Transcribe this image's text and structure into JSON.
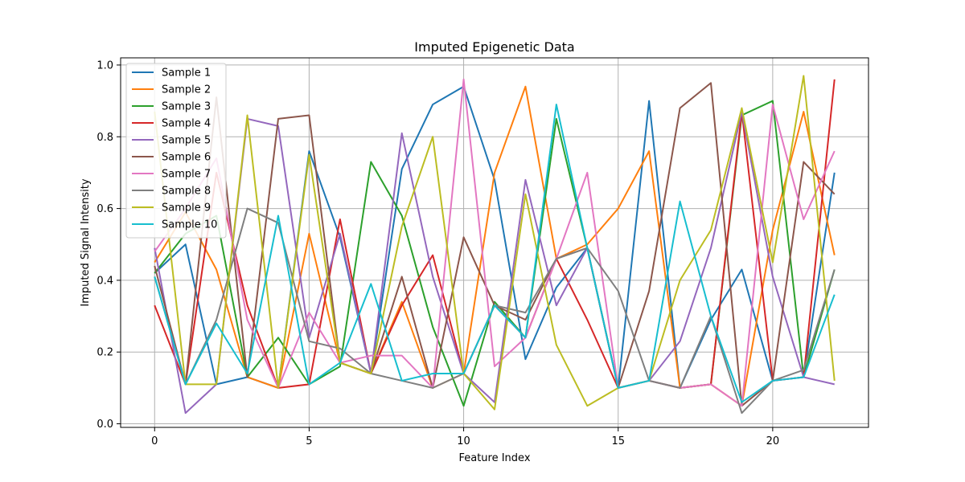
{
  "chart_data": {
    "type": "line",
    "title": "Imputed Epigenetic Data",
    "xlabel": "Feature Index",
    "ylabel": "Imputed Signal Intensity",
    "xlim": [
      -1.1,
      23.1
    ],
    "ylim": [
      -0.01,
      1.02
    ],
    "xticks": [
      0,
      5,
      10,
      15,
      20
    ],
    "yticks": [
      0.0,
      0.2,
      0.4,
      0.6,
      0.8,
      1.0
    ],
    "xtick_labels": [
      "0",
      "5",
      "10",
      "15",
      "20"
    ],
    "ytick_labels": [
      "0.0",
      "0.2",
      "0.4",
      "0.6",
      "0.8",
      "1.0"
    ],
    "grid": true,
    "legend_position": "upper-left",
    "x": [
      0,
      1,
      2,
      3,
      4,
      5,
      6,
      7,
      8,
      9,
      10,
      11,
      12,
      13,
      14,
      15,
      16,
      17,
      18,
      19,
      20,
      21,
      22
    ],
    "series": [
      {
        "name": "Sample 1",
        "color": "#1f77b4",
        "values": [
          0.42,
          0.5,
          0.11,
          0.13,
          0.1,
          0.76,
          0.52,
          0.14,
          0.71,
          0.89,
          0.94,
          0.68,
          0.18,
          0.38,
          0.49,
          0.1,
          0.9,
          0.1,
          0.29,
          0.43,
          0.12,
          0.13,
          0.7
        ]
      },
      {
        "name": "Sample 2",
        "color": "#ff7f0e",
        "values": [
          0.45,
          0.59,
          0.43,
          0.13,
          0.1,
          0.53,
          0.17,
          0.14,
          0.34,
          0.1,
          0.14,
          0.7,
          0.94,
          0.46,
          0.5,
          0.6,
          0.76,
          0.1,
          0.11,
          0.05,
          0.54,
          0.87,
          0.47
        ]
      },
      {
        "name": "Sample 3",
        "color": "#2ca02c",
        "values": [
          0.42,
          0.53,
          0.58,
          0.13,
          0.24,
          0.11,
          0.16,
          0.73,
          0.58,
          0.27,
          0.05,
          0.34,
          0.24,
          0.85,
          0.49,
          0.1,
          0.12,
          0.1,
          0.11,
          0.86,
          0.9,
          0.13,
          0.43
        ]
      },
      {
        "name": "Sample 4",
        "color": "#d62728",
        "values": [
          0.33,
          0.11,
          0.7,
          0.33,
          0.1,
          0.11,
          0.57,
          0.14,
          0.33,
          0.47,
          0.14,
          0.33,
          0.24,
          0.46,
          0.29,
          0.1,
          0.12,
          0.1,
          0.11,
          0.87,
          0.12,
          0.13,
          0.96
        ]
      },
      {
        "name": "Sample 5",
        "color": "#9467bd",
        "values": [
          0.49,
          0.03,
          0.11,
          0.85,
          0.83,
          0.24,
          0.53,
          0.14,
          0.81,
          0.41,
          0.14,
          0.06,
          0.68,
          0.33,
          0.49,
          0.1,
          0.12,
          0.23,
          0.49,
          0.87,
          0.41,
          0.13,
          0.11
        ]
      },
      {
        "name": "Sample 6",
        "color": "#8c564b",
        "values": [
          0.44,
          0.11,
          0.91,
          0.13,
          0.85,
          0.86,
          0.17,
          0.14,
          0.41,
          0.1,
          0.52,
          0.33,
          0.29,
          0.46,
          0.49,
          0.1,
          0.37,
          0.88,
          0.95,
          0.05,
          0.12,
          0.73,
          0.64
        ]
      },
      {
        "name": "Sample 7",
        "color": "#e377c2",
        "values": [
          0.48,
          0.6,
          0.74,
          0.29,
          0.1,
          0.31,
          0.17,
          0.19,
          0.19,
          0.1,
          0.96,
          0.16,
          0.24,
          0.46,
          0.7,
          0.1,
          0.12,
          0.1,
          0.11,
          0.05,
          0.89,
          0.57,
          0.76
        ]
      },
      {
        "name": "Sample 8",
        "color": "#7f7f7f",
        "values": [
          0.41,
          0.11,
          0.29,
          0.6,
          0.56,
          0.23,
          0.21,
          0.14,
          0.12,
          0.1,
          0.14,
          0.33,
          0.31,
          0.46,
          0.49,
          0.37,
          0.12,
          0.1,
          0.3,
          0.03,
          0.12,
          0.15,
          0.43
        ]
      },
      {
        "name": "Sample 9",
        "color": "#bcbd22",
        "values": [
          0.87,
          0.11,
          0.11,
          0.86,
          0.1,
          0.75,
          0.17,
          0.14,
          0.55,
          0.8,
          0.14,
          0.04,
          0.64,
          0.22,
          0.05,
          0.1,
          0.12,
          0.4,
          0.54,
          0.88,
          0.45,
          0.97,
          0.12
        ]
      },
      {
        "name": "Sample 10",
        "color": "#17becf",
        "values": [
          0.41,
          0.11,
          0.28,
          0.14,
          0.58,
          0.11,
          0.17,
          0.39,
          0.12,
          0.14,
          0.14,
          0.33,
          0.24,
          0.89,
          0.49,
          0.1,
          0.12,
          0.62,
          0.3,
          0.06,
          0.12,
          0.13,
          0.36
        ]
      }
    ]
  }
}
